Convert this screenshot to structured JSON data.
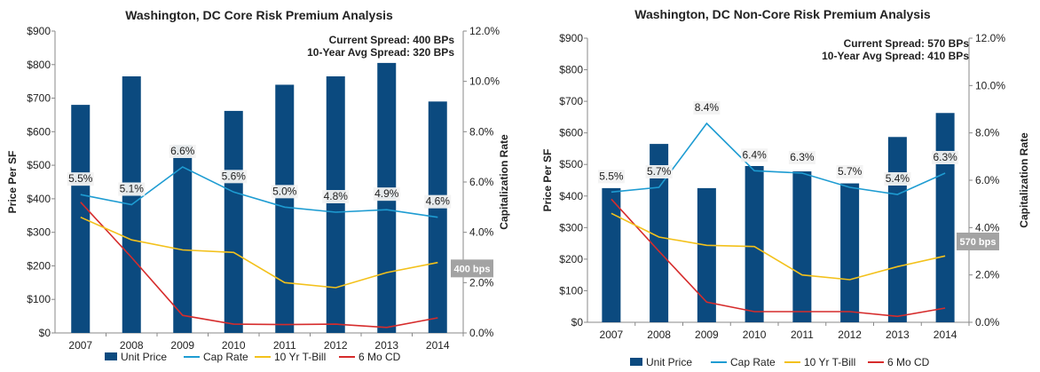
{
  "colors": {
    "unit_price": "#0b4a7f",
    "cap_rate": "#1e9cd2",
    "t_bill": "#f3c11b",
    "cd": "#d62c2c",
    "bps_box": "#a3a3a3"
  },
  "chart_data": [
    {
      "type": "bar",
      "title": "Washington, DC Core Risk Premium Analysis",
      "categories": [
        "2007",
        "2008",
        "2009",
        "2010",
        "2011",
        "2012",
        "2013",
        "2014"
      ],
      "ylabel": "Price Per SF",
      "y2label": "Capitalization Rate",
      "ylim": [
        0,
        900
      ],
      "y2lim": [
        0,
        12
      ],
      "yticks": [
        "$0",
        "$100",
        "$200",
        "$300",
        "$400",
        "$500",
        "$600",
        "$700",
        "$800",
        "$900"
      ],
      "y2ticks": [
        "0.0%",
        "2.0%",
        "4.0%",
        "6.0%",
        "8.0%",
        "10.0%",
        "12.0%"
      ],
      "grid": false,
      "series": [
        {
          "name": "Unit Price",
          "type": "bar",
          "axis": "left",
          "values": [
            680,
            765,
            560,
            662,
            740,
            765,
            805,
            690
          ]
        },
        {
          "name": "Cap Rate",
          "type": "line",
          "axis": "right",
          "values": [
            5.5,
            5.1,
            6.6,
            5.6,
            5.0,
            4.8,
            4.9,
            4.6
          ],
          "labels": [
            "5.5%",
            "5.1%",
            "6.6%",
            "5.6%",
            "5.0%",
            "4.8%",
            "4.9%",
            "4.6%"
          ]
        },
        {
          "name": "10 Yr T-Bill",
          "type": "line",
          "axis": "right",
          "values": [
            4.6,
            3.7,
            3.3,
            3.2,
            2.0,
            1.8,
            2.4,
            2.8
          ]
        },
        {
          "name": "6 Mo CD",
          "type": "line",
          "axis": "right",
          "values": [
            5.2,
            3.0,
            0.7,
            0.35,
            0.33,
            0.35,
            0.22,
            0.6
          ]
        }
      ],
      "spread_lines": [
        "Current Spread: 400 BPs",
        "10-Year Avg Spread: 320 BPs"
      ],
      "bps_callout": "400 bps",
      "bps_range": [
        4.6,
        0.6
      ],
      "legend": "bottom"
    },
    {
      "type": "bar",
      "title": "Washington, DC Non-Core Risk Premium Analysis",
      "categories": [
        "2007",
        "2008",
        "2009",
        "2010",
        "2011",
        "2012",
        "2013",
        "2014"
      ],
      "ylabel": "Price Per SF",
      "y2label": "Capitalization Rate",
      "ylim": [
        0,
        900
      ],
      "y2lim": [
        0,
        12
      ],
      "yticks": [
        "$0",
        "$100",
        "$200",
        "$300",
        "$400",
        "$500",
        "$600",
        "$700",
        "$800",
        "$900"
      ],
      "y2ticks": [
        "0.0%",
        "2.0%",
        "4.0%",
        "6.0%",
        "8.0%",
        "10.0%",
        "12.0%"
      ],
      "grid": false,
      "series": [
        {
          "name": "Unit Price",
          "type": "bar",
          "axis": "left",
          "values": [
            425,
            565,
            425,
            495,
            478,
            440,
            587,
            663
          ]
        },
        {
          "name": "Cap Rate",
          "type": "line",
          "axis": "right",
          "values": [
            5.5,
            5.7,
            8.4,
            6.4,
            6.3,
            5.7,
            5.4,
            6.3
          ],
          "labels": [
            "5.5%",
            "5.7%",
            "8.4%",
            "6.4%",
            "6.3%",
            "5.7%",
            "5.4%",
            "6.3%"
          ]
        },
        {
          "name": "10 Yr T-Bill",
          "type": "line",
          "axis": "right",
          "values": [
            4.6,
            3.6,
            3.25,
            3.2,
            2.0,
            1.8,
            2.35,
            2.8
          ]
        },
        {
          "name": "6 Mo CD",
          "type": "line",
          "axis": "right",
          "values": [
            5.2,
            3.0,
            0.85,
            0.45,
            0.45,
            0.45,
            0.25,
            0.6
          ]
        }
      ],
      "spread_lines": [
        "Current Spread: 570 BPs",
        "10-Year Avg Spread: 410 BPs"
      ],
      "bps_callout": "570 bps",
      "bps_range": [
        6.3,
        0.6
      ],
      "legend": "bottom"
    }
  ]
}
